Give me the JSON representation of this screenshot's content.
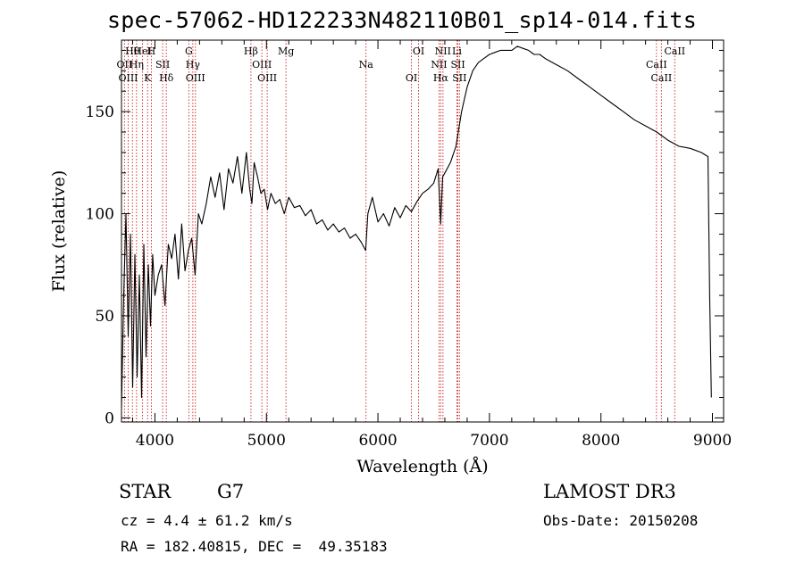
{
  "header": {
    "title": "spec-57062-HD122233N482110B01_sp14-014.fits"
  },
  "info": {
    "object_type": "STAR",
    "spectral_class": "G7",
    "survey": "LAMOST DR3",
    "redshift": "cz = 4.4 ± 61.2 km/s",
    "obs_date": "Obs-Date: 20150208",
    "coordinates": "RA = 182.40815, DEC =  49.35183"
  },
  "colors": {
    "line_marker": "#cc2222",
    "spectrum": "#000000"
  },
  "chart_data": {
    "type": "line",
    "title": "spec-57062-HD122233N482110B01_sp14-014.fits",
    "xlabel": "Wavelength (Å)",
    "ylabel": "Flux (relative)",
    "xlim": [
      3700,
      9100
    ],
    "ylim": [
      -2,
      185
    ],
    "xticks": [
      4000,
      5000,
      6000,
      7000,
      8000,
      9000
    ],
    "xtick_labels": [
      "4000",
      "5000",
      "6000",
      "7000",
      "8000",
      "9000"
    ],
    "yticks": [
      0,
      50,
      100,
      150
    ],
    "ytick_labels": [
      "0",
      "50",
      "100",
      "150"
    ],
    "series": [
      {
        "name": "spectrum",
        "x": [
          3700,
          3720,
          3740,
          3760,
          3780,
          3800,
          3820,
          3840,
          3860,
          3880,
          3900,
          3920,
          3940,
          3960,
          3980,
          4000,
          4030,
          4060,
          4090,
          4120,
          4150,
          4180,
          4210,
          4240,
          4270,
          4300,
          4330,
          4360,
          4390,
          4420,
          4460,
          4500,
          4540,
          4580,
          4620,
          4660,
          4700,
          4740,
          4780,
          4820,
          4850,
          4870,
          4890,
          4920,
          4950,
          4980,
          5010,
          5040,
          5080,
          5120,
          5160,
          5200,
          5250,
          5300,
          5350,
          5400,
          5450,
          5500,
          5550,
          5600,
          5650,
          5700,
          5750,
          5800,
          5850,
          5890,
          5910,
          5950,
          6000,
          6050,
          6100,
          6150,
          6200,
          6250,
          6300,
          6350,
          6400,
          6450,
          6500,
          6540,
          6563,
          6580,
          6600,
          6650,
          6700,
          6750,
          6800,
          6850,
          6900,
          6950,
          7000,
          7050,
          7100,
          7150,
          7200,
          7250,
          7300,
          7350,
          7400,
          7450,
          7500,
          7600,
          7700,
          7800,
          7900,
          8000,
          8100,
          8200,
          8300,
          8400,
          8500,
          8600,
          8700,
          8800,
          8900,
          8960,
          8975,
          8990
        ],
        "y": [
          5,
          60,
          100,
          40,
          90,
          15,
          80,
          20,
          70,
          10,
          85,
          30,
          75,
          45,
          80,
          60,
          70,
          75,
          55,
          85,
          78,
          90,
          68,
          95,
          72,
          82,
          88,
          70,
          100,
          95,
          105,
          118,
          108,
          120,
          102,
          122,
          115,
          128,
          110,
          130,
          112,
          105,
          125,
          118,
          110,
          112,
          102,
          110,
          105,
          107,
          100,
          108,
          103,
          104,
          99,
          102,
          95,
          97,
          92,
          95,
          91,
          93,
          88,
          90,
          86,
          82,
          100,
          108,
          96,
          100,
          94,
          103,
          98,
          104,
          101,
          106,
          110,
          112,
          115,
          122,
          95,
          118,
          120,
          125,
          133,
          150,
          162,
          170,
          174,
          176,
          178,
          179,
          180,
          180,
          180,
          182,
          181,
          180,
          178,
          178,
          176,
          173,
          170,
          166,
          162,
          158,
          154,
          150,
          146,
          143,
          140,
          136,
          133,
          132,
          130,
          128,
          60,
          10
        ]
      }
    ],
    "line_markers": [
      {
        "name": "Hθ",
        "wave": 3798
      },
      {
        "name": "OII",
        "wave": 3727
      },
      {
        "name": "OIII",
        "wave": 3760
      },
      {
        "name": "HeI",
        "wave": 3889
      },
      {
        "name": "Hη",
        "wave": 3835
      },
      {
        "name": "K",
        "wave": 3934
      },
      {
        "name": "H",
        "wave": 3968
      },
      {
        "name": "SII",
        "wave": 4069
      },
      {
        "name": "Hδ",
        "wave": 4102
      },
      {
        "name": "G",
        "wave": 4304
      },
      {
        "name": "Hγ",
        "wave": 4340
      },
      {
        "name": "OIII",
        "wave": 4363
      },
      {
        "name": "Hβ",
        "wave": 4861
      },
      {
        "name": "OIII",
        "wave": 4959
      },
      {
        "name": "OIII",
        "wave": 5007
      },
      {
        "name": "Mg",
        "wave": 5175
      },
      {
        "name": "Na",
        "wave": 5893
      },
      {
        "name": "OI",
        "wave": 6300
      },
      {
        "name": "OI",
        "wave": 6364
      },
      {
        "name": "NII",
        "wave": 6548
      },
      {
        "name": "Hα",
        "wave": 6563
      },
      {
        "name": "NII",
        "wave": 6583
      },
      {
        "name": "SII",
        "wave": 6717
      },
      {
        "name": "SII",
        "wave": 6731
      },
      {
        "name": "Li",
        "wave": 6708
      },
      {
        "name": "CaII",
        "wave": 8498
      },
      {
        "name": "CaII",
        "wave": 8542
      },
      {
        "name": "CaII",
        "wave": 8662
      }
    ]
  }
}
